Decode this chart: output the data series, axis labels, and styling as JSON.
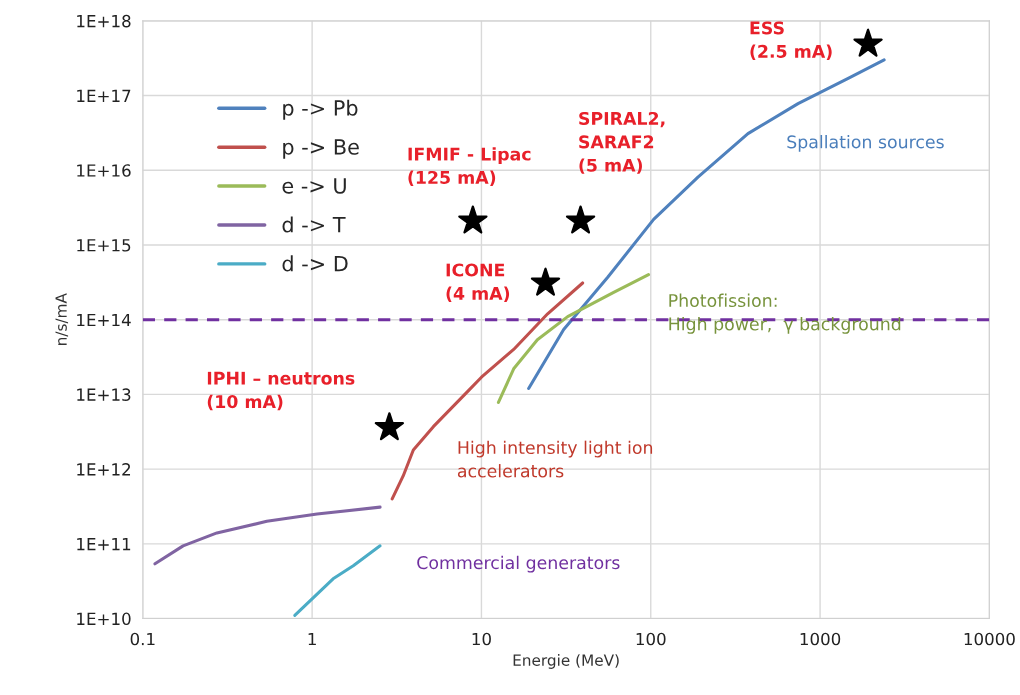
{
  "chart_data": {
    "type": "line",
    "xlabel": "Energie (MeV)",
    "ylabel": "n/s/mA",
    "log": "xy",
    "xlim": [
      0.1,
      10000
    ],
    "xticks": [
      0.1,
      1,
      10,
      100,
      1000,
      10000
    ],
    "ylim": [
      10000000000.0,
      1e+18
    ],
    "yticks": [
      {
        "value": 10000000000.0,
        "label": "1E+10"
      },
      {
        "value": 100000000000.0,
        "label": "1E+11"
      },
      {
        "value": 1000000000000.0,
        "label": "1E+12"
      },
      {
        "value": 10000000000000.0,
        "label": "1E+13"
      },
      {
        "value": 100000000000000.0,
        "label": "1E+14"
      },
      {
        "value": 1000000000000000.0,
        "label": "1E+15"
      },
      {
        "value": 1e+16,
        "label": "1E+16"
      },
      {
        "value": 1e+17,
        "label": "1E+17"
      },
      {
        "value": 1e+18,
        "label": "1E+18"
      }
    ],
    "grid": true,
    "legend": "top left",
    "series": [
      {
        "name": "p -> Pb",
        "color": "#4f81bd",
        "x": [
          19,
          30.6,
          55.7,
          104,
          190,
          375,
          741,
          1465,
          2390
        ],
        "values": [
          12000000000000.0,
          74000000000000.0,
          370000000000000.0,
          2200000000000000.0,
          8100000000000000.0,
          3.1e+16,
          7.8e+16,
          1.7e+17,
          3e+17
        ]
      },
      {
        "name": "p -> Be",
        "color": "#c0504d",
        "x": [
          2.97,
          3.45,
          3.96,
          5.2,
          8.3,
          10,
          15.5,
          24.6,
          39.6
        ],
        "values": [
          400000000000.0,
          810000000000.0,
          1800000000000.0,
          3700000000000.0,
          11000000000000.0,
          17000000000000.0,
          40000000000000.0,
          120000000000000.0,
          310000000000000.0
        ]
      },
      {
        "name": "e -> U",
        "color": "#9bbb59",
        "x": [
          12.6,
          15.5,
          21.4,
          32.3,
          60,
          97
        ],
        "values": [
          7800000000000.0,
          22000000000000.0,
          54000000000000.0,
          110000000000000.0,
          230000000000000.0,
          400000000000000.0
        ]
      },
      {
        "name": "d -> T",
        "color": "#8064a2",
        "x": [
          0.118,
          0.173,
          0.274,
          0.54,
          1.07,
          2.52
        ],
        "values": [
          54000000000.0,
          94000000000.0,
          140000000000.0,
          200000000000.0,
          250000000000.0,
          310000000000.0
        ]
      },
      {
        "name": "d -> D",
        "color": "#4bacc6",
        "x": [
          0.79,
          1.33,
          1.75,
          2.52
        ],
        "values": [
          11000000000.0,
          34000000000.0,
          51000000000.0,
          94000000000.0
        ]
      },
      {
        "type": "scatter",
        "marker": "star",
        "color": "#000000",
        "x": [
          8.9,
          23.9,
          38.5,
          1920,
          2.86
        ],
        "values": [
          2100000000000000.0,
          310000000000000.0,
          2100000000000000.0,
          4.9e+17,
          3600000000000.0
        ]
      }
    ],
    "ref_lines": [
      {
        "axis": "y",
        "value": 100000000000000.0,
        "color": "#7030a0",
        "line_style": "dashed"
      }
    ],
    "annotations": [
      "ESS\n(2.5 mA)",
      "SPIRAL2,\nSARAF2\n(5 mA)",
      "IFMIF - Lipac\n(125 mA)",
      "ICONE\n(4 mA)",
      "IPHI – neutrons\n(10 mA)",
      "High intensity light ion\naccelerators",
      "Commercial generators",
      "Spallation sources",
      "Photofission:\nHigh power,  γ background"
    ]
  }
}
